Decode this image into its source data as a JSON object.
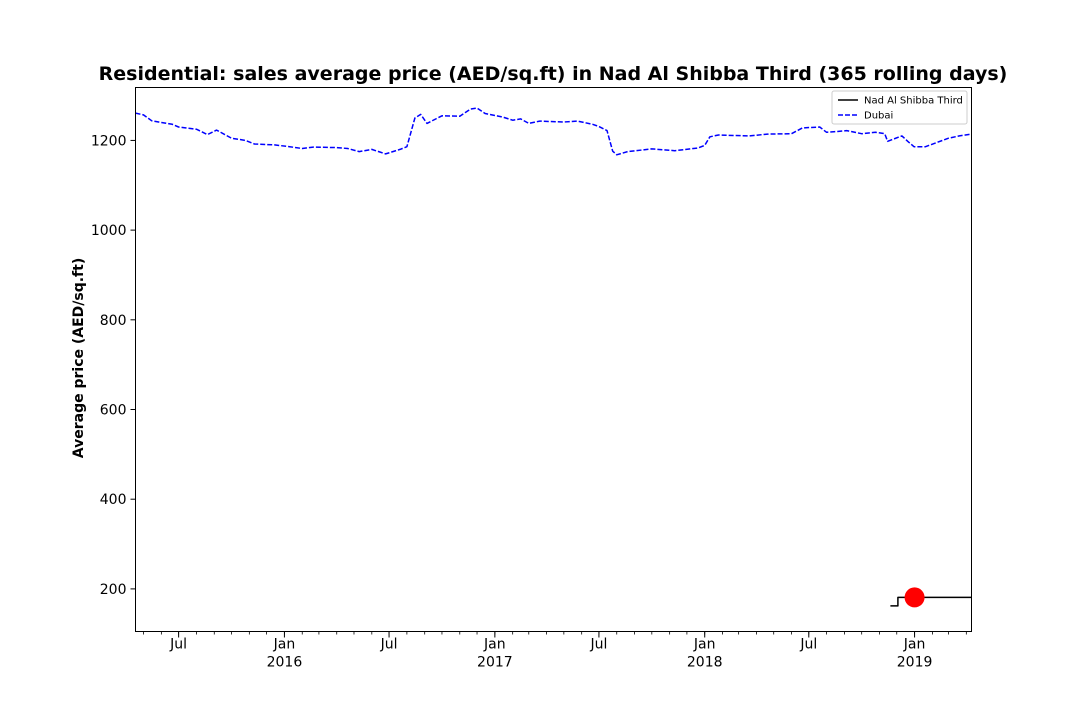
{
  "chart_data": {
    "type": "line",
    "title": "Residential: sales average price (AED/sq.ft) in Nad Al Shibba Third (365 rolling days)",
    "ylabel": "Average price (AED/sq.ft)",
    "xlabel": "",
    "xlim": [
      "2015-04-17",
      "2019-04-10"
    ],
    "ylim": [
      105,
      1318
    ],
    "y_ticks": [
      200,
      400,
      600,
      800,
      1000,
      1200
    ],
    "x_ticks": [
      {
        "date": "2015-07-01",
        "label": "Jul",
        "year": ""
      },
      {
        "date": "2016-01-01",
        "label": "Jan",
        "year": "2016"
      },
      {
        "date": "2016-07-01",
        "label": "Jul",
        "year": ""
      },
      {
        "date": "2017-01-01",
        "label": "Jan",
        "year": "2017"
      },
      {
        "date": "2017-07-01",
        "label": "Jul",
        "year": ""
      },
      {
        "date": "2018-01-01",
        "label": "Jan",
        "year": "2018"
      },
      {
        "date": "2018-07-01",
        "label": "Jul",
        "year": ""
      },
      {
        "date": "2019-01-01",
        "label": "Jan",
        "year": "2019"
      }
    ],
    "grid": false,
    "legend_position": "top-right",
    "series": [
      {
        "name": "Nad Al Shibba Third",
        "color": "#000000",
        "style": "solid",
        "points": [
          [
            "2018-11-20",
            162
          ],
          [
            "2018-12-03",
            162
          ],
          [
            "2018-12-03",
            181
          ],
          [
            "2018-12-31",
            181
          ],
          [
            "2019-04-10",
            181
          ]
        ]
      },
      {
        "name": "Dubai",
        "color": "#0000ff",
        "style": "dashed",
        "points": [
          [
            "2015-04-17",
            1261
          ],
          [
            "2015-05-01",
            1257
          ],
          [
            "2015-05-15",
            1244
          ],
          [
            "2015-06-01",
            1240
          ],
          [
            "2015-06-20",
            1236
          ],
          [
            "2015-07-01",
            1230
          ],
          [
            "2015-08-01",
            1225
          ],
          [
            "2015-08-20",
            1213
          ],
          [
            "2015-09-05",
            1223
          ],
          [
            "2015-10-01",
            1205
          ],
          [
            "2015-10-25",
            1200
          ],
          [
            "2015-11-10",
            1192
          ],
          [
            "2015-12-15",
            1190
          ],
          [
            "2016-01-10",
            1186
          ],
          [
            "2016-02-01",
            1182
          ],
          [
            "2016-02-20",
            1185
          ],
          [
            "2016-04-01",
            1184
          ],
          [
            "2016-04-20",
            1182
          ],
          [
            "2016-05-10",
            1175
          ],
          [
            "2016-06-01",
            1180
          ],
          [
            "2016-06-25",
            1170
          ],
          [
            "2016-07-20",
            1180
          ],
          [
            "2016-08-01",
            1186
          ],
          [
            "2016-08-15",
            1250
          ],
          [
            "2016-08-25",
            1258
          ],
          [
            "2016-09-05",
            1238
          ],
          [
            "2016-10-01",
            1255
          ],
          [
            "2016-11-01",
            1254
          ],
          [
            "2016-11-20",
            1270
          ],
          [
            "2016-12-01",
            1272
          ],
          [
            "2016-12-15",
            1260
          ],
          [
            "2017-01-15",
            1252
          ],
          [
            "2017-02-01",
            1245
          ],
          [
            "2017-02-15",
            1248
          ],
          [
            "2017-03-01",
            1238
          ],
          [
            "2017-03-20",
            1243
          ],
          [
            "2017-05-01",
            1241
          ],
          [
            "2017-05-25",
            1243
          ],
          [
            "2017-06-20",
            1236
          ],
          [
            "2017-07-01",
            1231
          ],
          [
            "2017-07-15",
            1222
          ],
          [
            "2017-07-25",
            1176
          ],
          [
            "2017-08-01",
            1168
          ],
          [
            "2017-08-20",
            1175
          ],
          [
            "2017-10-01",
            1181
          ],
          [
            "2017-11-10",
            1177
          ],
          [
            "2017-12-20",
            1183
          ],
          [
            "2018-01-01",
            1189
          ],
          [
            "2018-01-10",
            1208
          ],
          [
            "2018-01-25",
            1212
          ],
          [
            "2018-02-20",
            1211
          ],
          [
            "2018-03-20",
            1210
          ],
          [
            "2018-04-20",
            1214
          ],
          [
            "2018-06-01",
            1215
          ],
          [
            "2018-06-20",
            1228
          ],
          [
            "2018-07-20",
            1230
          ],
          [
            "2018-08-01",
            1218
          ],
          [
            "2018-08-20",
            1220
          ],
          [
            "2018-09-05",
            1222
          ],
          [
            "2018-10-01",
            1215
          ],
          [
            "2018-10-25",
            1218
          ],
          [
            "2018-11-10",
            1215
          ],
          [
            "2018-11-15",
            1198
          ],
          [
            "2018-12-10",
            1210
          ],
          [
            "2018-12-20",
            1198
          ],
          [
            "2018-12-31",
            1186
          ],
          [
            "2019-01-20",
            1186
          ],
          [
            "2019-02-10",
            1196
          ],
          [
            "2019-03-01",
            1205
          ],
          [
            "2019-03-20",
            1210
          ],
          [
            "2019-04-10",
            1214
          ]
        ]
      }
    ],
    "marker": {
      "date": "2019-01-01",
      "value": 181,
      "color": "#ff0000"
    }
  }
}
